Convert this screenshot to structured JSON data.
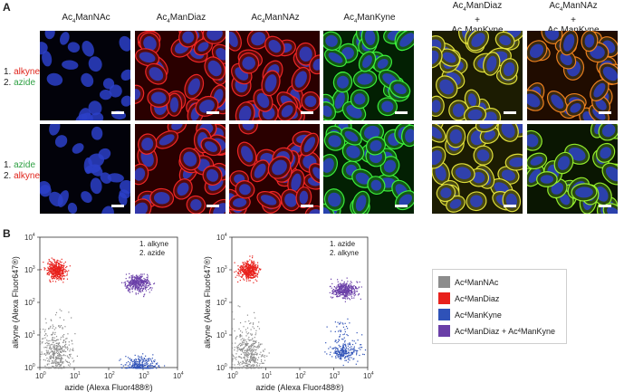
{
  "panel_a": {
    "letter": "A",
    "columns": [
      {
        "pre": "Ac",
        "sub": "4",
        "post": "ManNAc"
      },
      {
        "pre": "Ac",
        "sub": "4",
        "post": "ManDiaz"
      },
      {
        "pre": "Ac",
        "sub": "4",
        "post": "ManNAz"
      },
      {
        "pre": "Ac",
        "sub": "4",
        "post": "ManKyne"
      }
    ],
    "combo_columns": [
      {
        "line1_pre": "Ac",
        "line1_sub": "4",
        "line1_post": "ManDiaz",
        "plus": "+",
        "line2_pre": "Ac",
        "line2_sub": "4",
        "line2_post": "ManKyne"
      },
      {
        "line1_pre": "Ac",
        "line1_sub": "4",
        "line1_post": "ManNAz",
        "plus": "+",
        "line2_pre": "Ac",
        "line2_sub": "4",
        "line2_post": "ManKyne"
      }
    ],
    "rows": [
      {
        "step1_num": "1.",
        "step1": "alkyne",
        "step2_num": "2.",
        "step2": "azide"
      },
      {
        "step1_num": "1.",
        "step1": "azide",
        "step2_num": "2.",
        "step2": "alkyne"
      }
    ],
    "label_colors": {
      "alkyne": "#e0241b",
      "azide": "#2ea043"
    }
  },
  "panel_b": {
    "letter": "B",
    "plots": [
      {
        "step1": "1. alkyne",
        "step2": "2. azide"
      },
      {
        "step1": "1. azide",
        "step2": "2. alkyne"
      }
    ],
    "ylabel": "alkyne (Alexa Fluor647®)",
    "xlabel": "azide (Alexa Fluor488®)",
    "tick_exponents": [
      "0",
      "1",
      "2",
      "3",
      "4"
    ],
    "legend": [
      {
        "pre": "Ac",
        "sub": "4",
        "post": "ManNAc",
        "color": "#8c8c8c"
      },
      {
        "pre": "Ac",
        "sub": "4",
        "post": "ManDiaz",
        "color": "#e8211c"
      },
      {
        "pre": "Ac",
        "sub": "4",
        "post": "ManKyne",
        "color": "#2f52b8"
      },
      {
        "pre": "Ac",
        "sub": "4",
        "post": "ManDiaz + Ac",
        "sub2": "4",
        "post2": "ManKyne",
        "color": "#6a3fa8"
      }
    ]
  },
  "chart_data": [
    {
      "type": "scatter",
      "title": "1. alkyne 2. azide",
      "xlabel": "azide (Alexa Fluor488®)",
      "ylabel": "alkyne (Alexa Fluor647®)",
      "x_scale": "log",
      "y_scale": "log",
      "xlim": [
        1,
        10000
      ],
      "ylim": [
        1,
        10000
      ],
      "series": [
        {
          "name": "Ac4ManNAc",
          "color": "#8c8c8c",
          "center": [
            3,
            2.5
          ]
        },
        {
          "name": "Ac4ManDiaz",
          "color": "#e8211c",
          "center": [
            3,
            1000
          ]
        },
        {
          "name": "Ac4ManKyne",
          "color": "#2f52b8",
          "center": [
            800,
            1.2
          ]
        },
        {
          "name": "Ac4ManDiaz + Ac4ManKyne",
          "color": "#6a3fa8",
          "center": [
            700,
            400
          ]
        }
      ]
    },
    {
      "type": "scatter",
      "title": "1. azide 2. alkyne",
      "xlabel": "azide (Alexa Fluor488®)",
      "ylabel": "alkyne (Alexa Fluor647®)",
      "x_scale": "log",
      "y_scale": "log",
      "xlim": [
        1,
        10000
      ],
      "ylim": [
        1,
        10000
      ],
      "series": [
        {
          "name": "Ac4ManNAc",
          "color": "#8c8c8c",
          "center": [
            3,
            2.5
          ]
        },
        {
          "name": "Ac4ManDiaz",
          "color": "#e8211c",
          "center": [
            3,
            1000
          ]
        },
        {
          "name": "Ac4ManKyne",
          "color": "#2f52b8",
          "center": [
            2000,
            3
          ]
        },
        {
          "name": "Ac4ManDiaz + Ac4ManKyne",
          "color": "#6a3fa8",
          "center": [
            2000,
            250
          ]
        }
      ]
    }
  ]
}
